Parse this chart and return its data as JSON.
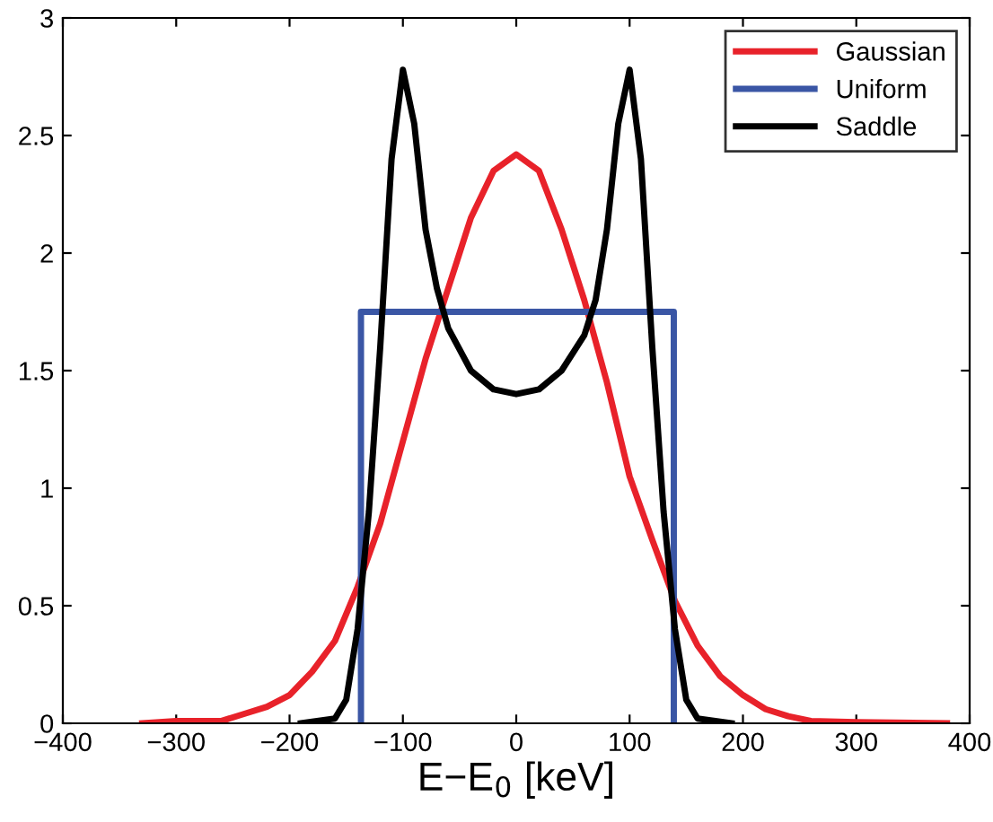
{
  "chart_data": {
    "type": "line",
    "xlabel": "E−E$_{0}$ [keV]",
    "xlim": [
      -400,
      400
    ],
    "xticks": [
      -400,
      -300,
      -200,
      -100,
      0,
      100,
      200,
      300,
      400
    ],
    "ylim": [
      0,
      3
    ],
    "yticks": [
      0,
      0.5,
      1,
      1.5,
      2,
      2.5,
      3
    ],
    "grid": false,
    "legend": "top right",
    "line_style": "solid",
    "marker": "none",
    "series": [
      {
        "name": "Gaussian",
        "color": "#e8222a",
        "x": [
          -330,
          -300,
          -260,
          -240,
          -220,
          -200,
          -180,
          -160,
          -140,
          -120,
          -100,
          -80,
          -60,
          -40,
          -20,
          0,
          20,
          40,
          60,
          80,
          100,
          120,
          140,
          160,
          180,
          200,
          220,
          240,
          260,
          300,
          380
        ],
        "values": [
          0,
          0.01,
          0.01,
          0.04,
          0.07,
          0.12,
          0.22,
          0.35,
          0.58,
          0.85,
          1.2,
          1.55,
          1.85,
          2.15,
          2.35,
          2.42,
          2.35,
          2.1,
          1.8,
          1.45,
          1.05,
          0.78,
          0.52,
          0.33,
          0.2,
          0.12,
          0.06,
          0.03,
          0.01,
          0.005,
          0
        ]
      },
      {
        "name": "Uniform",
        "color": "#3a56a5",
        "x": [
          -137,
          -137,
          139,
          139
        ],
        "values": [
          0,
          1.75,
          1.75,
          0
        ]
      },
      {
        "name": "Saddle",
        "color": "#000000",
        "x": [
          -190,
          -160,
          -150,
          -140,
          -130,
          -120,
          -110,
          -100,
          -90,
          -80,
          -70,
          -60,
          -40,
          -20,
          0,
          20,
          40,
          60,
          70,
          80,
          90,
          100,
          110,
          120,
          130,
          140,
          150,
          160,
          190
        ],
        "values": [
          0,
          0.02,
          0.1,
          0.4,
          0.9,
          1.6,
          2.4,
          2.78,
          2.55,
          2.1,
          1.85,
          1.68,
          1.5,
          1.42,
          1.4,
          1.42,
          1.5,
          1.65,
          1.8,
          2.1,
          2.55,
          2.78,
          2.4,
          1.6,
          0.9,
          0.4,
          0.1,
          0.02,
          0
        ]
      }
    ]
  }
}
